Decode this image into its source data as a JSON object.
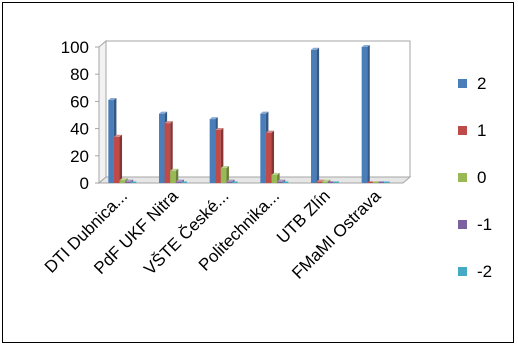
{
  "chart_data": {
    "type": "bar",
    "categories": [
      "DTI Dubnica...",
      "PdF UKF Nitra",
      "VŠTE České...",
      "Politechnika...",
      "UTB Zlín",
      "FMaMI Ostrava"
    ],
    "series": [
      {
        "name": "2",
        "color": "#4a7ebb",
        "values": [
          61,
          51,
          47,
          51,
          98,
          100
        ]
      },
      {
        "name": "1",
        "color": "#be4b48",
        "values": [
          34,
          44,
          39,
          37,
          1,
          0
        ]
      },
      {
        "name": "0",
        "color": "#98b954",
        "values": [
          2,
          9,
          11,
          6,
          1,
          0
        ]
      },
      {
        "name": "-1",
        "color": "#7d60a0",
        "values": [
          1,
          1,
          1,
          1,
          0,
          0
        ]
      },
      {
        "name": "-2",
        "color": "#46aac5",
        "values": [
          0,
          0,
          0,
          0,
          0,
          0
        ]
      }
    ],
    "yticks": [
      "0",
      "20",
      "40",
      "60",
      "80",
      "100"
    ],
    "ylim": [
      0,
      100
    ],
    "legend_position": "right",
    "grid": false,
    "style": "3d-clustered-column"
  }
}
